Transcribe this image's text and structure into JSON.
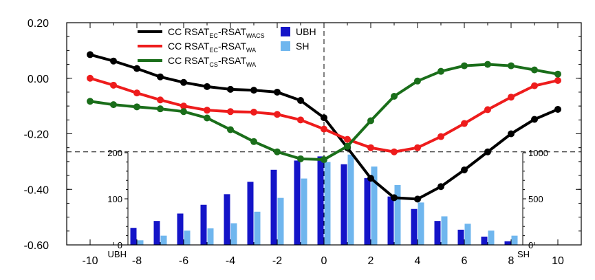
{
  "chart_data": [
    {
      "type": "line",
      "x": [
        -10,
        -9,
        -8,
        -7,
        -6,
        -5,
        -4,
        -3,
        -2,
        -1,
        0,
        1,
        2,
        3,
        4,
        5,
        6,
        7,
        8,
        9,
        10
      ],
      "xticks": [
        "-10",
        "-8",
        "-6",
        "-4",
        "-2",
        "0",
        "2",
        "4",
        "6",
        "8",
        "10"
      ],
      "yticks": [
        "0.20",
        "0.00",
        "-0.20",
        "-0.40",
        "-0.60"
      ],
      "ylim": [
        -0.6,
        0.2
      ],
      "xlim": [
        -11,
        11
      ],
      "series": [
        {
          "name": "CC RSAT_EC-RSAT_WACS",
          "legend": {
            "pre": "CC RSAT",
            "s1": "EC",
            "mid": "-RSAT",
            "s2": "WACS"
          },
          "color": "#000000",
          "values": [
            0.085,
            0.062,
            0.035,
            0.005,
            -0.015,
            -0.03,
            -0.04,
            -0.043,
            -0.05,
            -0.08,
            -0.142,
            -0.25,
            -0.36,
            -0.43,
            -0.435,
            -0.39,
            -0.33,
            -0.265,
            -0.2,
            -0.148,
            -0.112
          ]
        },
        {
          "name": "CC RSAT_EC-RSAT_WA",
          "legend": {
            "pre": "CC RSAT",
            "s1": "EC",
            "mid": "-RSAT",
            "s2": "WA"
          },
          "color": "#ee1c1c",
          "values": [
            0.0,
            -0.025,
            -0.053,
            -0.078,
            -0.1,
            -0.115,
            -0.12,
            -0.122,
            -0.13,
            -0.15,
            -0.183,
            -0.22,
            -0.25,
            -0.265,
            -0.25,
            -0.21,
            -0.163,
            -0.113,
            -0.068,
            -0.027,
            -0.008
          ]
        },
        {
          "name": "CC RSAT_CS-RSAT_WA",
          "legend": {
            "pre": "CC RSAT",
            "s1": "CS",
            "mid": "-RSAT",
            "s2": "WA"
          },
          "color": "#1a6e1a",
          "values": [
            -0.083,
            -0.095,
            -0.103,
            -0.11,
            -0.12,
            -0.143,
            -0.185,
            -0.228,
            -0.265,
            -0.29,
            -0.293,
            -0.245,
            -0.153,
            -0.065,
            -0.01,
            0.025,
            0.045,
            0.05,
            0.045,
            0.03,
            0.015
          ]
        }
      ],
      "reference_lines": {
        "x": 0,
        "y": -0.265
      }
    },
    {
      "type": "bar",
      "x": [
        -8,
        -7,
        -6,
        -5,
        -4,
        -3,
        -2,
        -1,
        0,
        1,
        2,
        3,
        4,
        5,
        6,
        7,
        8
      ],
      "xlabel_left": "UBH",
      "xlabel_right": "SH",
      "left_yticks": [
        "200",
        "100",
        "0"
      ],
      "right_yticks": [
        "1000",
        "500",
        "0"
      ],
      "left_ylim": [
        0,
        200
      ],
      "right_ylim": [
        0,
        1000
      ],
      "series": [
        {
          "name": "UBH",
          "color": "#1414c8",
          "axis": "left",
          "values": [
            37,
            52,
            68,
            87,
            110,
            137,
            163,
            183,
            192,
            175,
            145,
            105,
            78,
            52,
            33,
            18,
            8
          ]
        },
        {
          "name": "SH",
          "color": "#6fb6ee",
          "axis": "right",
          "values": [
            50,
            100,
            155,
            180,
            235,
            360,
            510,
            720,
            900,
            980,
            850,
            650,
            460,
            310,
            230,
            155,
            100
          ]
        }
      ]
    }
  ]
}
